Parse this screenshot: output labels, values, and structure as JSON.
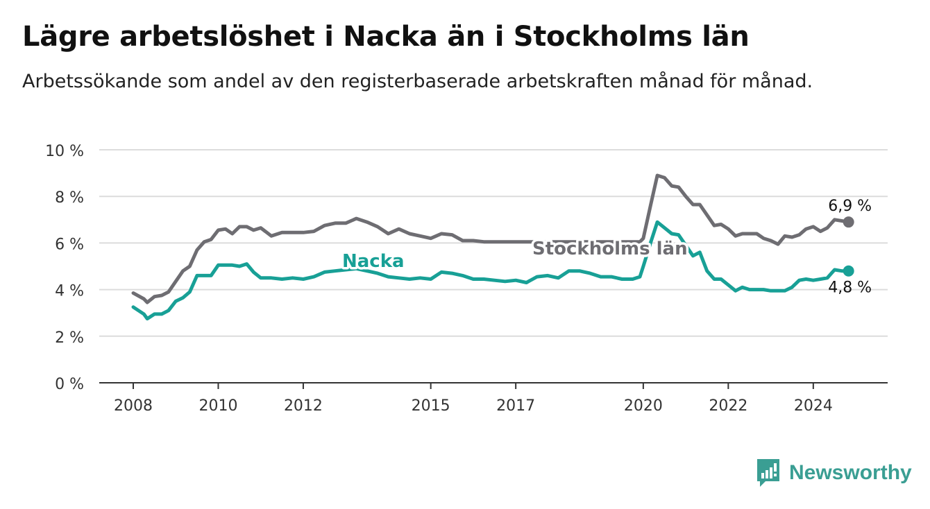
{
  "header": {
    "title": "Lägre arbetslöshet i Nacka än i Stockholms län",
    "subtitle": "Arbetssökande som andel av den registerbaserade arbetskraften månad för månad."
  },
  "brand": {
    "name": "Newsworthy",
    "icon": "newsworthy-logo-icon",
    "color": "#3a9e93"
  },
  "chart_data": {
    "type": "line",
    "title": "Lägre arbetslöshet i Nacka än i Stockholms län",
    "subtitle": "Arbetssökande som andel av den registerbaserade arbetskraften månad för månad.",
    "xlabel": "",
    "ylabel": "",
    "ylim": [
      0,
      10
    ],
    "xlim": [
      2007.2,
      2025.75
    ],
    "y_ticks": [
      0,
      2,
      4,
      6,
      8,
      10
    ],
    "y_tick_labels": [
      "0 %",
      "2 %",
      "4 %",
      "6 %",
      "8 %",
      "10 %"
    ],
    "x_ticks": [
      2008,
      2010,
      2012,
      2015,
      2017,
      2020,
      2022,
      2024
    ],
    "x_tick_labels": [
      "2008",
      "2010",
      "2012",
      "2015",
      "2017",
      "2020",
      "2022",
      "2024"
    ],
    "grid": true,
    "legend": "direct labels on lines",
    "series": [
      {
        "name": "Stockholms län",
        "color": "#6e6d72",
        "end_label": "6,9 %",
        "x": [
          2008.0,
          2008.25,
          2008.33,
          2008.5,
          2008.67,
          2008.83,
          2009.0,
          2009.17,
          2009.33,
          2009.5,
          2009.67,
          2009.83,
          2010.0,
          2010.17,
          2010.33,
          2010.5,
          2010.67,
          2010.83,
          2011.0,
          2011.25,
          2011.5,
          2011.75,
          2012.0,
          2012.25,
          2012.5,
          2012.75,
          2013.0,
          2013.25,
          2013.5,
          2013.75,
          2014.0,
          2014.25,
          2014.5,
          2014.75,
          2015.0,
          2015.25,
          2015.5,
          2015.75,
          2016.0,
          2016.25,
          2016.5,
          2016.75,
          2017.0,
          2017.25,
          2017.5,
          2017.75,
          2018.0,
          2018.25,
          2018.5,
          2018.75,
          2019.0,
          2019.25,
          2019.5,
          2019.75,
          2019.92,
          2020.0,
          2020.17,
          2020.33,
          2020.5,
          2020.67,
          2020.83,
          2021.0,
          2021.17,
          2021.33,
          2021.5,
          2021.67,
          2021.83,
          2022.0,
          2022.17,
          2022.33,
          2022.5,
          2022.67,
          2022.83,
          2023.0,
          2023.17,
          2023.33,
          2023.5,
          2023.67,
          2023.83,
          2024.0,
          2024.17,
          2024.33,
          2024.5,
          2024.67,
          2024.83
        ],
        "values": [
          3.85,
          3.6,
          3.45,
          3.7,
          3.75,
          3.9,
          4.35,
          4.8,
          5.0,
          5.7,
          6.05,
          6.15,
          6.55,
          6.6,
          6.4,
          6.7,
          6.7,
          6.55,
          6.65,
          6.3,
          6.45,
          6.45,
          6.45,
          6.5,
          6.75,
          6.85,
          6.85,
          7.05,
          6.9,
          6.7,
          6.4,
          6.6,
          6.4,
          6.3,
          6.2,
          6.4,
          6.35,
          6.1,
          6.1,
          6.05,
          6.05,
          6.05,
          6.05,
          6.05,
          6.05,
          6.05,
          6.05,
          6.05,
          6.05,
          6.05,
          6.05,
          6.05,
          6.05,
          6.05,
          6.05,
          6.2,
          7.6,
          8.9,
          8.8,
          8.45,
          8.4,
          8.0,
          7.65,
          7.65,
          7.2,
          6.75,
          6.8,
          6.6,
          6.3,
          6.4,
          6.4,
          6.4,
          6.2,
          6.1,
          5.95,
          6.3,
          6.25,
          6.35,
          6.6,
          6.7,
          6.5,
          6.65,
          7.0,
          6.95,
          6.9
        ]
      },
      {
        "name": "Nacka",
        "color": "#18a096",
        "end_label": "4,8 %",
        "x": [
          2008.0,
          2008.25,
          2008.33,
          2008.5,
          2008.67,
          2008.83,
          2009.0,
          2009.17,
          2009.33,
          2009.5,
          2009.67,
          2009.83,
          2010.0,
          2010.17,
          2010.33,
          2010.5,
          2010.67,
          2010.83,
          2011.0,
          2011.25,
          2011.5,
          2011.75,
          2012.0,
          2012.25,
          2012.5,
          2012.75,
          2013.0,
          2013.25,
          2013.5,
          2013.75,
          2014.0,
          2014.25,
          2014.5,
          2014.75,
          2015.0,
          2015.25,
          2015.5,
          2015.75,
          2016.0,
          2016.25,
          2016.5,
          2016.75,
          2017.0,
          2017.25,
          2017.5,
          2017.75,
          2018.0,
          2018.25,
          2018.5,
          2018.75,
          2019.0,
          2019.25,
          2019.5,
          2019.75,
          2019.92,
          2020.0,
          2020.17,
          2020.33,
          2020.5,
          2020.67,
          2020.83,
          2021.0,
          2021.17,
          2021.33,
          2021.5,
          2021.67,
          2021.83,
          2022.0,
          2022.17,
          2022.33,
          2022.5,
          2022.67,
          2022.83,
          2023.0,
          2023.17,
          2023.33,
          2023.5,
          2023.67,
          2023.83,
          2024.0,
          2024.17,
          2024.33,
          2024.5,
          2024.67,
          2024.83
        ],
        "values": [
          3.25,
          2.95,
          2.75,
          2.95,
          2.95,
          3.1,
          3.5,
          3.65,
          3.9,
          4.6,
          4.6,
          4.6,
          5.05,
          5.05,
          5.05,
          5.0,
          5.1,
          4.75,
          4.5,
          4.5,
          4.45,
          4.5,
          4.45,
          4.55,
          4.75,
          4.8,
          4.85,
          4.9,
          4.8,
          4.7,
          4.55,
          4.5,
          4.45,
          4.5,
          4.45,
          4.75,
          4.7,
          4.6,
          4.45,
          4.45,
          4.4,
          4.35,
          4.4,
          4.3,
          4.55,
          4.6,
          4.5,
          4.8,
          4.8,
          4.7,
          4.55,
          4.55,
          4.45,
          4.45,
          4.55,
          5.0,
          6.0,
          6.9,
          6.65,
          6.4,
          6.35,
          5.9,
          5.45,
          5.6,
          4.8,
          4.45,
          4.45,
          4.2,
          3.95,
          4.1,
          4.0,
          4.0,
          4.0,
          3.95,
          3.95,
          3.95,
          4.1,
          4.4,
          4.45,
          4.4,
          4.45,
          4.5,
          4.85,
          4.8,
          4.8
        ]
      }
    ]
  }
}
